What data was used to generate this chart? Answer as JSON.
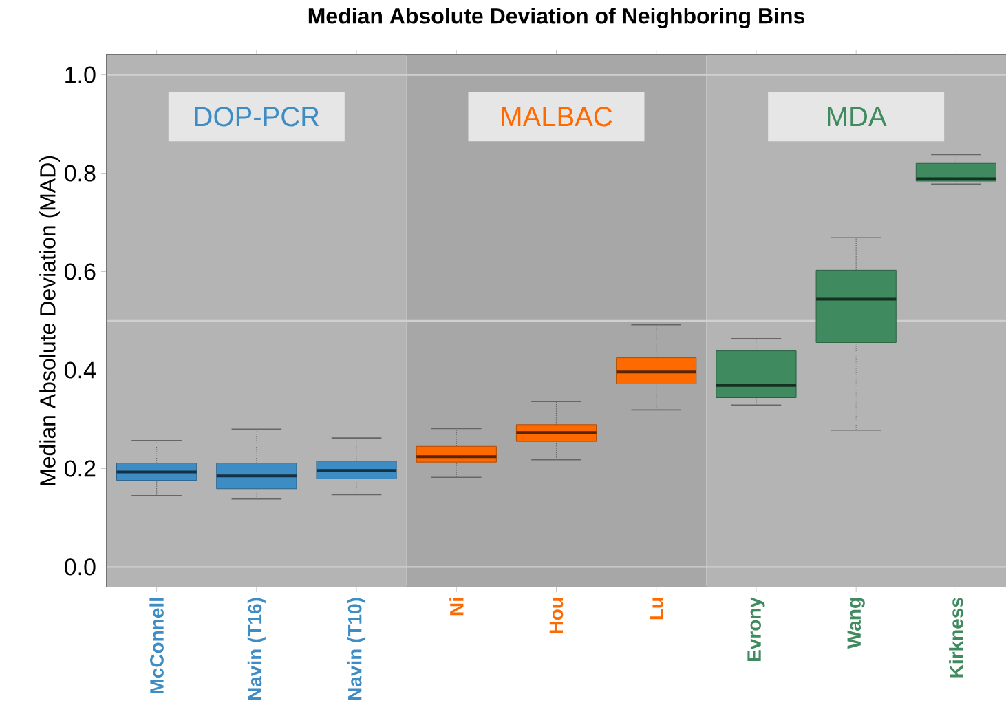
{
  "chart_data": {
    "type": "box",
    "title": "Median Absolute Deviation of Neighboring Bins",
    "ylabel": "Median Absolute Deviation (MAD)",
    "categories": [
      "McConnell",
      "Navin (T16)",
      "Navin (T10)",
      "Ni",
      "Hou",
      "Lu",
      "Evrony",
      "Wang",
      "Kirkness"
    ],
    "colors": [
      "#3d8cc4",
      "#3d8cc4",
      "#3d8cc4",
      "#ff6a00",
      "#ff6a00",
      "#ff6a00",
      "#3f8a5e",
      "#3f8a5e",
      "#3f8a5e"
    ],
    "boxes": [
      {
        "low": 0.145,
        "q1": 0.176,
        "median": 0.193,
        "q3": 0.211,
        "high": 0.257
      },
      {
        "low": 0.138,
        "q1": 0.159,
        "median": 0.185,
        "q3": 0.211,
        "high": 0.28
      },
      {
        "low": 0.147,
        "q1": 0.179,
        "median": 0.196,
        "q3": 0.215,
        "high": 0.262
      },
      {
        "low": 0.182,
        "q1": 0.213,
        "median": 0.224,
        "q3": 0.245,
        "high": 0.281
      },
      {
        "low": 0.218,
        "q1": 0.255,
        "median": 0.273,
        "q3": 0.289,
        "high": 0.336
      },
      {
        "low": 0.319,
        "q1": 0.372,
        "median": 0.396,
        "q3": 0.425,
        "high": 0.492
      },
      {
        "low": 0.329,
        "q1": 0.344,
        "median": 0.369,
        "q3": 0.439,
        "high": 0.464
      },
      {
        "low": 0.278,
        "q1": 0.456,
        "median": 0.544,
        "q3": 0.603,
        "high": 0.669
      },
      {
        "low": 0.778,
        "q1": 0.784,
        "median": 0.789,
        "q3": 0.82,
        "high": 0.838
      }
    ],
    "ylim": [
      -0.04,
      1.04
    ],
    "yticks": [
      {
        "value": 0,
        "label": "0.0"
      },
      0.2,
      0.4,
      0.6,
      0.8,
      {
        "value": 1,
        "label": "1.0"
      }
    ],
    "bands": [
      {
        "axis": "x",
        "from": "McConnell",
        "to": "Navin (T10)",
        "label": "DOP-PCR",
        "color": "#b4b4b4"
      },
      {
        "axis": "x",
        "from": "Ni",
        "to": "Lu",
        "label": "MALBAC",
        "color": "#a7a7a7"
      },
      {
        "axis": "x",
        "from": "Evrony",
        "to": "Kirkness",
        "label": "MDA",
        "color": "#b4b4b4"
      }
    ],
    "ref_lines": [
      {
        "axis": "y",
        "value": 0,
        "color": "#d0d0d0"
      },
      {
        "axis": "y",
        "value": 0.5,
        "color": "#d0d0d0"
      },
      {
        "axis": "y",
        "value": 1,
        "color": "#d0d0d0"
      }
    ],
    "grid": false
  }
}
